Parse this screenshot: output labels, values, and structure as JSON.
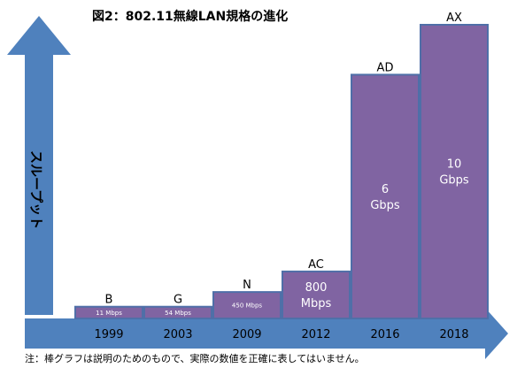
{
  "chart_data": {
    "type": "bar",
    "title": "図2：802.11無線LAN規格の進化",
    "ylabel": "スループット",
    "note": "注：棒グラフは説明のためのもので、実際の数値を正確に表してはいません。",
    "categories": [
      "1999",
      "2003",
      "2009",
      "2012",
      "2016",
      "2018"
    ],
    "standards": [
      "B",
      "G",
      "N",
      "AC",
      "AD",
      "AX"
    ],
    "bar_labels": [
      [
        "11 Mbps"
      ],
      [
        "54 Mbps"
      ],
      [
        "450 Mbps"
      ],
      [
        "800",
        "Mbps"
      ],
      [
        "6",
        "Gbps"
      ],
      [
        "10",
        "Gbps"
      ]
    ],
    "values": [
      0.04,
      0.04,
      0.09,
      0.16,
      0.83,
      1.0
    ],
    "value_unit": "relative bar height (illustrative, not to scale)",
    "colors": {
      "bar_fill": "#8064A2",
      "bar_stroke": "#4F6FA8",
      "bar_text": "#FFFFFF",
      "axis_arrow": "#4F81BD"
    }
  }
}
